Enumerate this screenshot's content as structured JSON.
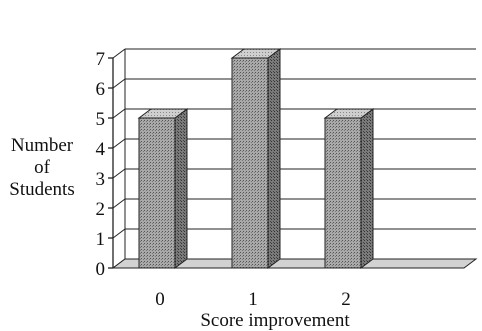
{
  "chart_data": {
    "type": "bar",
    "style": "3d",
    "categories": [
      "0",
      "1",
      "2"
    ],
    "series": [
      {
        "values": [
          5,
          7,
          5
        ]
      }
    ],
    "title": "",
    "xlabel": "Score improvement",
    "ylabel_lines": [
      "Number",
      "of",
      "Students"
    ],
    "yticks": [
      0,
      1,
      2,
      3,
      4,
      5,
      6,
      7
    ],
    "ylim": [
      0,
      7
    ],
    "grid": true,
    "legend": false,
    "colors": {
      "bar_front": "#9a9a9a",
      "bar_side": "#6e6e6e",
      "bar_top": "#c8c8c8",
      "floor": "#d2d2d2",
      "axis": "#222222",
      "grid": "#222222"
    }
  }
}
